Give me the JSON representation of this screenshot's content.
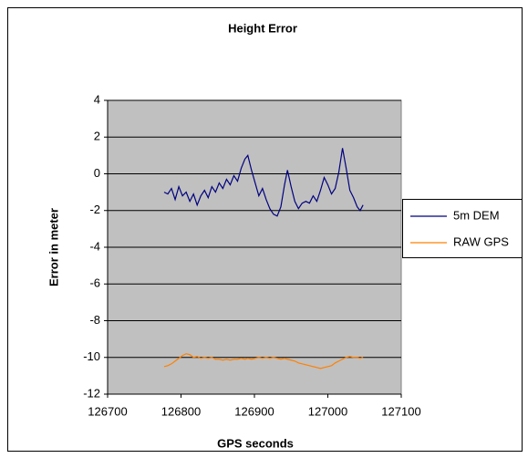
{
  "chart_data": {
    "type": "line",
    "title": "Height Error",
    "x_label": "GPS seconds",
    "y_label": "Error in meter",
    "x": [
      126777,
      126782,
      126787,
      126792,
      126797,
      126802,
      126807,
      126812,
      126817,
      126822,
      126827,
      126832,
      126837,
      126842,
      126847,
      126852,
      126857,
      126862,
      126867,
      126872,
      126877,
      126882,
      126887,
      126891,
      126896,
      126901,
      126906,
      126911,
      126916,
      126921,
      126926,
      126931,
      126936,
      126941,
      126945,
      126950,
      126955,
      126960,
      126965,
      126970,
      126975,
      126980,
      126985,
      126990,
      126995,
      127000,
      127005,
      127010,
      127015,
      127020,
      127025,
      127030,
      127035,
      127040,
      127044,
      127048
    ],
    "series": [
      {
        "name": "5m DEM",
        "color": "#000080",
        "values": [
          -1.0,
          -1.1,
          -0.8,
          -1.4,
          -0.7,
          -1.2,
          -1.0,
          -1.5,
          -1.1,
          -1.7,
          -1.2,
          -0.9,
          -1.3,
          -0.7,
          -1.0,
          -0.5,
          -0.8,
          -0.3,
          -0.6,
          -0.1,
          -0.4,
          0.3,
          0.8,
          1.0,
          0.2,
          -0.5,
          -1.2,
          -0.8,
          -1.4,
          -1.9,
          -2.2,
          -2.3,
          -1.8,
          -0.6,
          0.2,
          -0.7,
          -1.5,
          -1.9,
          -1.6,
          -1.5,
          -1.6,
          -1.2,
          -1.5,
          -0.9,
          -0.2,
          -0.6,
          -1.1,
          -0.8,
          0.1,
          1.4,
          0.3,
          -0.9,
          -1.3,
          -1.8,
          -2.0,
          -1.7
        ]
      },
      {
        "name": "RAW GPS",
        "color": "#ff8000",
        "values": [
          -10.5,
          -10.45,
          -10.35,
          -10.2,
          -10.05,
          -9.9,
          -9.8,
          -9.85,
          -10.0,
          -9.95,
          -10.05,
          -10.0,
          -10.05,
          -10.0,
          -10.1,
          -10.1,
          -10.15,
          -10.1,
          -10.15,
          -10.1,
          -10.1,
          -10.05,
          -10.1,
          -10.05,
          -10.1,
          -10.05,
          -10.0,
          -10.05,
          -10.0,
          -10.05,
          -10.0,
          -10.05,
          -10.1,
          -10.05,
          -10.1,
          -10.15,
          -10.2,
          -10.3,
          -10.35,
          -10.4,
          -10.45,
          -10.5,
          -10.55,
          -10.6,
          -10.55,
          -10.5,
          -10.45,
          -10.3,
          -10.2,
          -10.1,
          -10.0,
          -9.95,
          -10.0,
          -10.0,
          -10.05,
          -10.0
        ]
      }
    ],
    "xlim": [
      126700,
      127100
    ],
    "xticks": [
      126700,
      126800,
      126900,
      127000,
      127100
    ],
    "ylim": [
      -12,
      4
    ],
    "yticks": [
      -12,
      -10,
      -8,
      -6,
      -4,
      -2,
      0,
      2,
      4
    ],
    "grid": true,
    "legend": "right",
    "plot_background": "#c0c0c0"
  }
}
